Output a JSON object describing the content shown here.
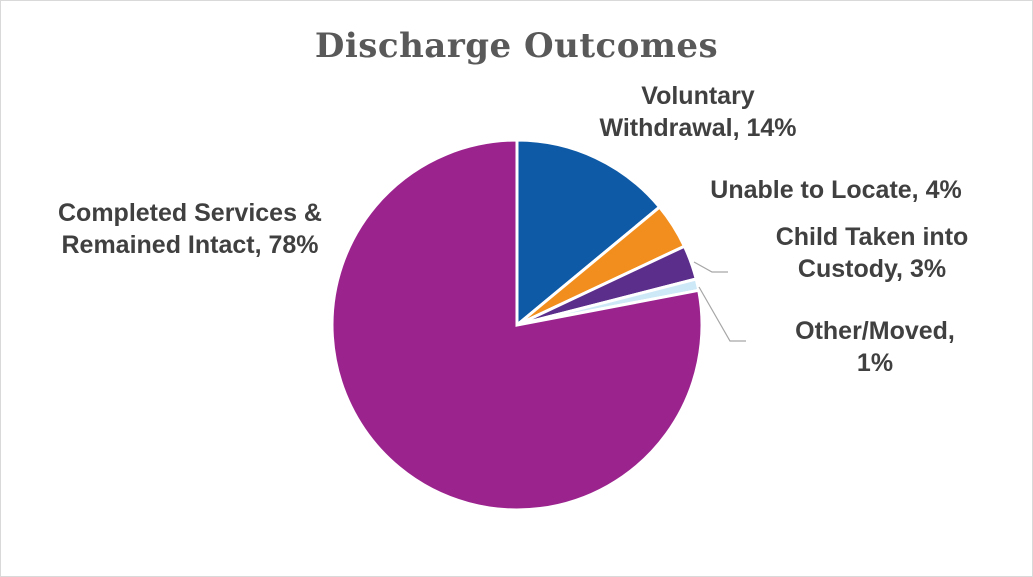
{
  "chart_data": {
    "type": "pie",
    "title": "Discharge Outcomes",
    "slices": [
      {
        "label_lines": [
          "Voluntary",
          "Withdrawal, 14%"
        ],
        "label": "Voluntary Withdrawal",
        "value": 14,
        "color": "#0e5aa7"
      },
      {
        "label_lines": [
          "Unable to Locate, 4%"
        ],
        "label": "Unable to Locate",
        "value": 4,
        "color": "#f28e1e"
      },
      {
        "label_lines": [
          "Child Taken into",
          "Custody, 3%"
        ],
        "label": "Child Taken into Custody",
        "value": 3,
        "color": "#5b2e8c"
      },
      {
        "label_lines": [
          "Other/Moved,",
          "1%"
        ],
        "label": "Other/Moved",
        "value": 1,
        "color": "#cde8f7"
      },
      {
        "label_lines": [
          "Completed Services &",
          "Remained Intact, 78%"
        ],
        "label": "Completed Services & Remained Intact",
        "value": 78,
        "color": "#9b238e"
      }
    ]
  }
}
